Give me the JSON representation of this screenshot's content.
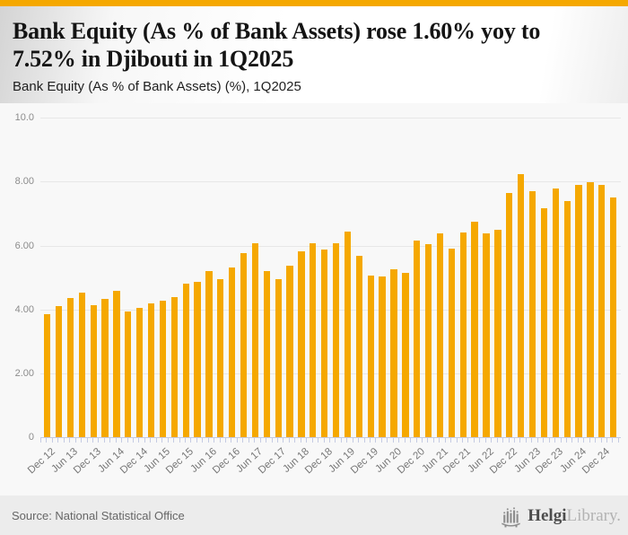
{
  "header": {
    "title_lines": [
      "Bank Equity (As % of Bank Assets) rose 1.60% yoy to",
      "7.52% in Djibouti in 1Q2025"
    ],
    "title": "Bank Equity (As % of Bank Assets) rose 1.60% yoy to 7.52% in Djibouti in 1Q2025",
    "subtitle": "Bank Equity (As % of Bank Assets) (%), 1Q2025"
  },
  "chart_data": {
    "type": "bar",
    "title": "Bank Equity (As % of Bank Assets) (%), 1Q2025",
    "categories": [
      "Dec 12",
      "Mar 13",
      "Jun 13",
      "Sep 13",
      "Dec 13",
      "Mar 14",
      "Jun 14",
      "Sep 14",
      "Dec 14",
      "Mar 15",
      "Jun 15",
      "Sep 15",
      "Dec 15",
      "Mar 16",
      "Jun 16",
      "Sep 16",
      "Dec 16",
      "Mar 17",
      "Jun 17",
      "Sep 17",
      "Dec 17",
      "Mar 18",
      "Jun 18",
      "Sep 18",
      "Dec 18",
      "Mar 19",
      "Jun 19",
      "Sep 19",
      "Dec 19",
      "Mar 20",
      "Jun 20",
      "Sep 20",
      "Dec 20",
      "Mar 21",
      "Jun 21",
      "Sep 21",
      "Dec 21",
      "Mar 22",
      "Jun 22",
      "Sep 22",
      "Dec 22",
      "Mar 23",
      "Jun 23",
      "Sep 23",
      "Dec 23",
      "Mar 24",
      "Jun 24",
      "Sep 24",
      "Dec 24",
      "Mar 25"
    ],
    "values": [
      3.85,
      4.1,
      4.37,
      4.52,
      4.14,
      4.33,
      4.59,
      3.94,
      4.05,
      4.19,
      4.28,
      4.39,
      4.81,
      4.87,
      5.21,
      4.94,
      5.3,
      5.76,
      6.06,
      5.2,
      4.96,
      5.37,
      5.81,
      6.07,
      5.87,
      6.06,
      6.44,
      5.67,
      5.06,
      5.02,
      5.26,
      5.14,
      6.15,
      6.04,
      6.39,
      5.9,
      6.42,
      6.76,
      6.37,
      6.49,
      7.66,
      8.25,
      7.71,
      7.18,
      7.79,
      7.4,
      7.9,
      7.99,
      7.89,
      7.52
    ],
    "xlabel": "",
    "ylabel": "",
    "ylim": [
      0,
      10.35
    ],
    "yticks": [
      {
        "label": "0",
        "value": 0
      },
      {
        "label": "2.00",
        "value": 2
      },
      {
        "label": "4.00",
        "value": 4
      },
      {
        "label": "6.00",
        "value": 6
      },
      {
        "label": "8.00",
        "value": 8
      },
      {
        "label": "10.0",
        "value": 10
      }
    ],
    "xtick_label_every": 2,
    "grid": true,
    "legend": false,
    "bar_color": "#F5A800",
    "gridline_color": "#e7e7e7",
    "axis_color": "#c5cbe3"
  },
  "footer": {
    "source": "Source: National Statistical Office",
    "brand_primary": "Helgi",
    "brand_secondary": "Library."
  },
  "colors": {
    "accent": "#F5A800",
    "page_background": "#f8f8f8",
    "footer_background": "#ececec"
  }
}
